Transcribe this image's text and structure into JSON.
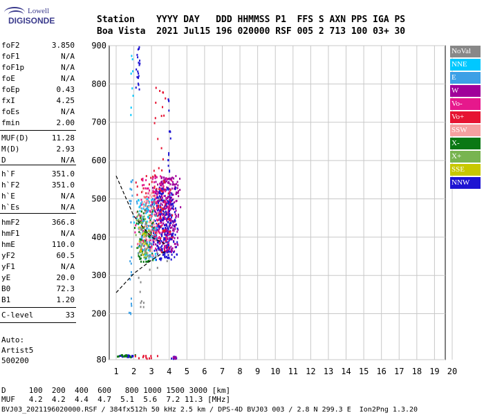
{
  "logo": {
    "line1": "Lowell",
    "line2": "DIGISONDE"
  },
  "header": {
    "labels": "Station    YYYY DAY   DDD HHMMSS P1  FFS S AXN PPS IGA PS",
    "values": "Boa Vista  2021 Jul15 196 020000 RSF 005 2 713 100 03+ 30"
  },
  "params": [
    {
      "name": "foF2",
      "value": "3.850"
    },
    {
      "name": "foF1",
      "value": "N/A"
    },
    {
      "name": "foF1p",
      "value": "N/A"
    },
    {
      "name": "foE",
      "value": "N/A"
    },
    {
      "name": "foEp",
      "value": "0.43"
    },
    {
      "name": "fxI",
      "value": "4.25"
    },
    {
      "name": "foEs",
      "value": "N/A"
    },
    {
      "name": "fmin",
      "value": "2.00"
    },
    {
      "name": "MUF(D)",
      "value": "11.28"
    },
    {
      "name": "M(D)",
      "value": "2.93"
    },
    {
      "name": "D",
      "value": "N/A"
    },
    {
      "name": "h`F",
      "value": "351.0"
    },
    {
      "name": "h`F2",
      "value": "351.0"
    },
    {
      "name": "h`E",
      "value": "N/A"
    },
    {
      "name": "h`Es",
      "value": "N/A"
    },
    {
      "name": "hmF2",
      "value": "366.8"
    },
    {
      "name": "hmF1",
      "value": "N/A"
    },
    {
      "name": "hmE",
      "value": "110.0"
    },
    {
      "name": "yF2",
      "value": "60.5"
    },
    {
      "name": "yF1",
      "value": "N/A"
    },
    {
      "name": "yE",
      "value": "20.0"
    },
    {
      "name": "B0",
      "value": "72.3"
    },
    {
      "name": "B1",
      "value": "1.20"
    },
    {
      "name": "C-level",
      "value": "33"
    }
  ],
  "auto": {
    "line1": "Auto:",
    "line2": "Artist5",
    "line3": "500200"
  },
  "legend": [
    {
      "label": "NoVal",
      "color": "#888888"
    },
    {
      "label": "NNE",
      "color": "#00c8ff"
    },
    {
      "label": "E",
      "color": "#3ca0e6"
    },
    {
      "label": "W",
      "color": "#a0009a"
    },
    {
      "label": "Vo-",
      "color": "#e6188c"
    },
    {
      "label": "Vo+",
      "color": "#e61432"
    },
    {
      "label": "SSW",
      "color": "#f5a0a0"
    },
    {
      "label": "X-",
      "color": "#0a7814"
    },
    {
      "label": "X+",
      "color": "#78b450"
    },
    {
      "label": "SSE",
      "color": "#c8c800"
    },
    {
      "label": "NNW",
      "color": "#1e14d2"
    }
  ],
  "footer": {
    "d_line": "D     100  200  400  600   800 1000 1500 3000 [km]",
    "muf_line": "MUF   4.2  4.2  4.4  4.7  5.1  5.6  7.2 11.3 [MHz]"
  },
  "file_line": "BVJ03_2021196020000.RSF / 384fx512h 50 kHz 2.5 km / DPS-4D BVJ03 003 / 2.8 N 299.3 E  Ion2Png 1.3.20",
  "chart_data": {
    "type": "scatter",
    "xlabel": "",
    "ylabel": "",
    "xlim": [
      1,
      20
    ],
    "ylim": [
      80,
      900
    ],
    "x_ticks": [
      1,
      2,
      3,
      4,
      5,
      6,
      7,
      8,
      9,
      10,
      11,
      12,
      13,
      14,
      15,
      16,
      17,
      18,
      19,
      20
    ],
    "y_ticks": [
      80,
      200,
      300,
      400,
      500,
      600,
      700,
      800,
      900
    ],
    "grid": true,
    "traces": [
      {
        "name": "trace-upper",
        "x": [
          1.0,
          2.0,
          3.0,
          3.85
        ],
        "y": [
          560,
          455,
          400,
          380
        ]
      },
      {
        "name": "trace-lower",
        "x": [
          1.0,
          1.5,
          2.0,
          3.0,
          3.85
        ],
        "y": [
          255,
          280,
          305,
          340,
          365
        ]
      }
    ],
    "clusters": [
      {
        "mode": "W",
        "x": [
          3.0,
          4.7
        ],
        "y": [
          360,
          560
        ],
        "n": 320
      },
      {
        "mode": "NNW",
        "x": [
          2.9,
          4.6
        ],
        "y": [
          340,
          530
        ],
        "n": 220
      },
      {
        "mode": "Vo+",
        "x": [
          2.0,
          4.3
        ],
        "y": [
          360,
          560
        ],
        "n": 110
      },
      {
        "mode": "Vo-",
        "x": [
          2.0,
          4.3
        ],
        "y": [
          370,
          560
        ],
        "n": 110
      },
      {
        "mode": "NNE",
        "x": [
          1.9,
          3.4
        ],
        "y": [
          340,
          500
        ],
        "n": 80
      },
      {
        "mode": "E",
        "x": [
          1.9,
          3.4
        ],
        "y": [
          340,
          500
        ],
        "n": 60
      },
      {
        "mode": "X-",
        "x": [
          1.9,
          3.2
        ],
        "y": [
          335,
          470
        ],
        "n": 60
      },
      {
        "mode": "SSW",
        "x": [
          2.0,
          3.5
        ],
        "y": [
          350,
          520
        ],
        "n": 60
      },
      {
        "mode": "X+",
        "x": [
          2.0,
          3.2
        ],
        "y": [
          340,
          460
        ],
        "n": 40
      },
      {
        "mode": "SSE",
        "x": [
          2.1,
          3.0
        ],
        "y": [
          350,
          430
        ],
        "n": 15
      },
      {
        "mode": "NoVal",
        "x": [
          2.0,
          4.0
        ],
        "y": [
          300,
          500
        ],
        "n": 30
      }
    ],
    "sparse": [
      {
        "mode": "NNW",
        "x": [
          2.1,
          2.4
        ],
        "y": [
          780,
          900
        ],
        "n": 20
      },
      {
        "mode": "NNE",
        "x": [
          1.8,
          2.0
        ],
        "y": [
          640,
          880
        ],
        "n": 8
      },
      {
        "mode": "NNW",
        "x": [
          3.9,
          4.1
        ],
        "y": [
          560,
          760
        ],
        "n": 15
      },
      {
        "mode": "Vo+",
        "x": [
          2.8,
          3.9
        ],
        "y": [
          560,
          810
        ],
        "n": 18
      },
      {
        "mode": "E",
        "x": [
          1.7,
          2.0
        ],
        "y": [
          180,
          560
        ],
        "n": 25
      },
      {
        "mode": "NoVal",
        "x": [
          2.2,
          2.6
        ],
        "y": [
          210,
          300
        ],
        "n": 8
      },
      {
        "mode": "NNW",
        "x": [
          1.0,
          2.2
        ],
        "y": [
          86,
          92
        ],
        "n": 20
      },
      {
        "mode": "X-",
        "x": [
          1.0,
          2.2
        ],
        "y": [
          86,
          92
        ],
        "n": 16
      },
      {
        "mode": "Vo+",
        "x": [
          2.0,
          3.5
        ],
        "y": [
          82,
          90
        ],
        "n": 12
      },
      {
        "mode": "NNW",
        "x": [
          4.1,
          4.5
        ],
        "y": [
          82,
          88
        ],
        "n": 10
      },
      {
        "mode": "W",
        "x": [
          4.1,
          4.5
        ],
        "y": [
          82,
          88
        ],
        "n": 8
      }
    ]
  }
}
